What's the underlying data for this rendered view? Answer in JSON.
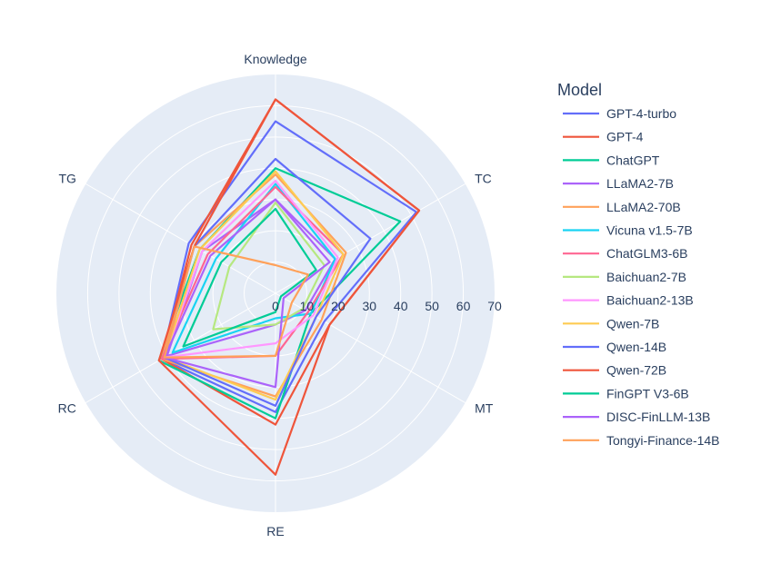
{
  "chart_data": {
    "type": "radar",
    "axes": [
      "Knowledge",
      "TC",
      "MT",
      "RE",
      "RC",
      "TG"
    ],
    "radial_range": [
      0,
      70
    ],
    "radial_ticks": [
      "0",
      "10",
      "20",
      "30",
      "40",
      "50",
      "60",
      "70"
    ],
    "legend": {
      "title": "Model",
      "placement": "right"
    },
    "series": [
      {
        "name": "GPT-4-turbo",
        "color": "#636efa",
        "values": [
          55,
          52,
          18,
          38,
          42,
          32
        ]
      },
      {
        "name": "GPT-4",
        "color": "#EF553B",
        "values": [
          62,
          53,
          20,
          42,
          42,
          31
        ]
      },
      {
        "name": "ChatGPT",
        "color": "#00cc96",
        "values": [
          40,
          46,
          13,
          40,
          43,
          28
        ]
      },
      {
        "name": "LLaMA2-7B",
        "color": "#ab63fa",
        "values": [
          30,
          22,
          11,
          10,
          40,
          27
        ]
      },
      {
        "name": "LLaMA2-70B",
        "color": "#FFA15A",
        "values": [
          38,
          26,
          17,
          33,
          42,
          30
        ]
      },
      {
        "name": "Vicuna v1.5-7B",
        "color": "#19d3f3",
        "values": [
          35,
          22,
          13,
          8,
          38,
          22
        ]
      },
      {
        "name": "ChatGLM3-6B",
        "color": "#FF6692",
        "values": [
          34,
          25,
          12,
          20,
          42,
          25
        ]
      },
      {
        "name": "Baichuan2-7B",
        "color": "#B6E880",
        "values": [
          29,
          18,
          10,
          10,
          23,
          17
        ]
      },
      {
        "name": "Baichuan2-13B",
        "color": "#FF97FF",
        "values": [
          36,
          23,
          14,
          16,
          41,
          27
        ]
      },
      {
        "name": "Qwen-7B",
        "color": "#FECB52",
        "values": [
          39,
          25,
          15,
          34,
          41,
          28
        ]
      },
      {
        "name": "Qwen-14B",
        "color": "#636efa",
        "values": [
          43,
          35,
          15,
          36,
          41,
          30
        ]
      },
      {
        "name": "Qwen-72B",
        "color": "#EF553B",
        "values": [
          62,
          53,
          20,
          58,
          43,
          30
        ]
      },
      {
        "name": "FinGPT V3-6B",
        "color": "#00cc96",
        "values": [
          27,
          15,
          2,
          6,
          34,
          20
        ]
      },
      {
        "name": "DISC-FinLLM-13B",
        "color": "#ab63fa",
        "values": [
          30,
          20,
          3,
          30,
          41,
          24
        ]
      },
      {
        "name": "Tongyi-Finance-14B",
        "color": "#FFA15A",
        "values": [
          9,
          12,
          6,
          20,
          41,
          30
        ]
      }
    ]
  }
}
